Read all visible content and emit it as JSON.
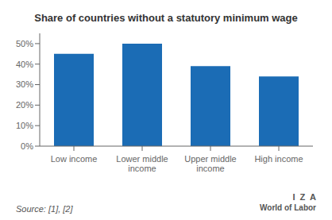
{
  "chart_data": {
    "type": "bar",
    "title": "Share of countries without a statutory minimum wage",
    "categories": [
      "Low income",
      "Lower middle\nincome",
      "Upper middle\nincome",
      "High income"
    ],
    "values": [
      45,
      50,
      39,
      34
    ],
    "color": "#1b6cb5",
    "ylim": [
      0,
      55
    ],
    "yticks": [
      {
        "value": 0,
        "label": "0%"
      },
      {
        "value": 10,
        "label": "10%"
      },
      {
        "value": 20,
        "label": "20%"
      },
      {
        "value": 30,
        "label": "30%"
      },
      {
        "value": 40,
        "label": "40%"
      },
      {
        "value": 50,
        "label": "50%"
      }
    ],
    "grid": false,
    "annotations": [
      "Source: [1], [2]",
      "I  Z  A",
      "World of Labor"
    ]
  }
}
